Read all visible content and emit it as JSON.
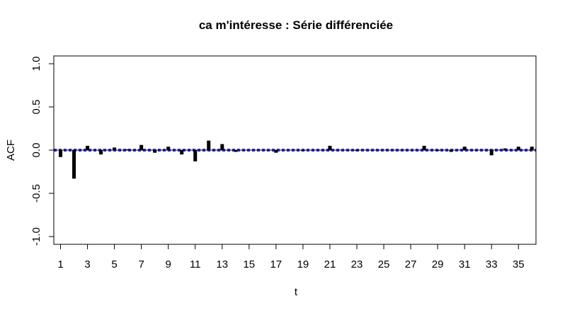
{
  "chart_data": {
    "type": "bar",
    "title": "ca m'intéresse : Série différenciée",
    "xlabel": "t",
    "ylabel": "ACF",
    "xlim": [
      0.5,
      36.3
    ],
    "ylim": [
      -1.0,
      1.0
    ],
    "x_ticks": [
      1,
      3,
      5,
      7,
      9,
      11,
      13,
      15,
      17,
      19,
      21,
      23,
      25,
      27,
      29,
      31,
      33,
      35
    ],
    "y_ticks": [
      -1.0,
      -0.5,
      0.0,
      0.5,
      1.0
    ],
    "y_tick_labels": [
      "-1.0",
      "-0.5",
      "0.0",
      "0.5",
      "1.0"
    ],
    "grid": false,
    "x": [
      1,
      2,
      3,
      4,
      5,
      6,
      7,
      8,
      9,
      10,
      11,
      12,
      13,
      14,
      15,
      16,
      17,
      18,
      19,
      20,
      21,
      22,
      23,
      24,
      25,
      26,
      27,
      28,
      29,
      30,
      31,
      32,
      33,
      34,
      35,
      36
    ],
    "values": [
      -0.08,
      -0.33,
      0.05,
      -0.05,
      0.03,
      0.01,
      0.06,
      -0.03,
      0.04,
      -0.05,
      -0.13,
      0.11,
      0.07,
      -0.02,
      0.0,
      0.0,
      -0.03,
      0.0,
      -0.01,
      0.0,
      0.05,
      0.0,
      -0.01,
      0.0,
      0.0,
      0.0,
      0.0,
      0.05,
      -0.01,
      -0.02,
      0.04,
      0.0,
      -0.06,
      0.02,
      0.04,
      0.04
    ],
    "confidence_band": 0.01,
    "colors": {
      "bars": "#000000",
      "zero_line": "#000000",
      "confidence_line": "#0000ff"
    }
  }
}
